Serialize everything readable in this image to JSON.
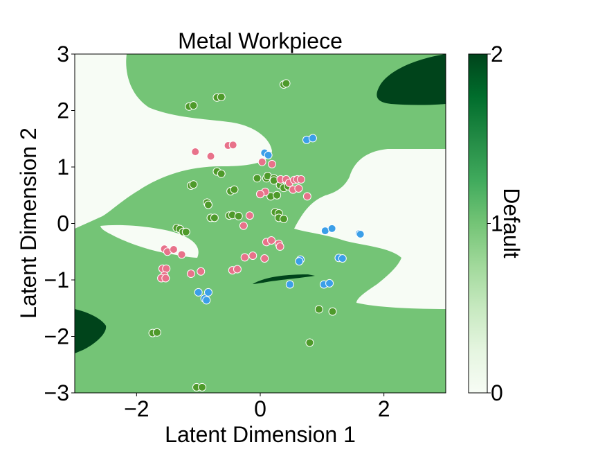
{
  "chart_data": {
    "type": "scatter",
    "title": "Metal Workpiece",
    "xlabel": "Latent Dimension 1",
    "ylabel": "Latent Dimension 2",
    "xlim": [
      -3,
      3
    ],
    "ylim": [
      -3,
      3
    ],
    "x_ticks": [
      -2,
      0,
      2
    ],
    "y_ticks": [
      -3,
      -2,
      -1,
      0,
      1,
      2,
      3
    ],
    "x_tick_labels": [
      "−2",
      "0",
      "2"
    ],
    "y_tick_labels": [
      "−3",
      "−2",
      "−1",
      "0",
      "1",
      "2",
      "3"
    ],
    "grid": false,
    "background": {
      "description": "decision-region contour map with three class levels",
      "class_colors": [
        "#f7fcf5",
        "#74c476",
        "#00441b"
      ]
    },
    "colorbar": {
      "label": "Default",
      "range": [
        0,
        2
      ],
      "ticks": [
        0,
        1,
        2
      ],
      "tick_labels": [
        "0",
        "1",
        "2"
      ],
      "cmap_stops": [
        "#f7fcf5",
        "#e5f5e0",
        "#c7e9c0",
        "#a1d99b",
        "#74c476",
        "#41ab5d",
        "#238b45",
        "#006d2c",
        "#00441b"
      ]
    },
    "series": [
      {
        "color": "#4e9a2a",
        "points": [
          [
            -1.15,
            2.07
          ],
          [
            -1.08,
            2.09
          ],
          [
            -0.7,
            2.23
          ],
          [
            -0.63,
            2.24
          ],
          [
            0.38,
            2.46
          ],
          [
            0.42,
            2.48
          ],
          [
            -1.12,
            0.67
          ],
          [
            -1.08,
            0.69
          ],
          [
            -0.7,
            0.92
          ],
          [
            -0.63,
            0.88
          ],
          [
            -0.48,
            0.57
          ],
          [
            -0.42,
            0.6
          ],
          [
            -0.86,
            0.37
          ],
          [
            -0.84,
            0.33
          ],
          [
            -0.8,
            0.1
          ],
          [
            -0.74,
            0.1
          ],
          [
            -0.5,
            0.14
          ],
          [
            -0.45,
            0.15
          ],
          [
            -0.35,
            0.13
          ],
          [
            -1.35,
            -0.08
          ],
          [
            -1.3,
            -0.1
          ],
          [
            -1.25,
            -0.15
          ],
          [
            -1.2,
            -0.15
          ],
          [
            -0.05,
            0.8
          ],
          [
            0.1,
            0.8
          ],
          [
            0.12,
            0.84
          ],
          [
            0.22,
            0.8
          ],
          [
            0.22,
            0.76
          ],
          [
            0.32,
            0.68
          ],
          [
            0.38,
            0.63
          ],
          [
            0.45,
            0.66
          ],
          [
            0.17,
            0.48
          ],
          [
            0.27,
            0.5
          ],
          [
            0.24,
            0.2
          ],
          [
            0.3,
            0.18
          ],
          [
            0.3,
            0.1
          ],
          [
            0.38,
            0.08
          ],
          [
            0.95,
            -1.52
          ],
          [
            1.17,
            -1.56
          ],
          [
            -1.74,
            -1.94
          ],
          [
            -1.67,
            -1.93
          ],
          [
            0.8,
            -2.11
          ],
          [
            -1.03,
            -2.9
          ],
          [
            -0.94,
            -2.9
          ]
        ]
      },
      {
        "color": "#e8728a",
        "points": [
          [
            -1.05,
            1.27
          ],
          [
            -0.8,
            1.19
          ],
          [
            -0.52,
            1.38
          ],
          [
            -0.44,
            1.39
          ],
          [
            0.03,
            1.09
          ],
          [
            0.19,
            1.05
          ],
          [
            0.0,
            0.52
          ],
          [
            0.08,
            0.56
          ],
          [
            0.0,
            0.52
          ],
          [
            0.33,
            0.78
          ],
          [
            0.42,
            0.78
          ],
          [
            0.47,
            0.72
          ],
          [
            0.55,
            0.77
          ],
          [
            0.6,
            0.78
          ],
          [
            0.53,
            0.6
          ],
          [
            0.62,
            0.62
          ],
          [
            0.66,
            0.78
          ],
          [
            0.76,
            0.48
          ],
          [
            -0.27,
            -0.04
          ],
          [
            -0.17,
            0.14
          ],
          [
            0.1,
            -0.33
          ],
          [
            0.18,
            -0.3
          ],
          [
            0.3,
            -0.36
          ],
          [
            0.32,
            -0.41
          ],
          [
            -0.25,
            -0.6
          ],
          [
            -0.12,
            -0.57
          ],
          [
            0.07,
            -0.62
          ],
          [
            -1.55,
            -0.45
          ],
          [
            -1.5,
            -0.5
          ],
          [
            -1.4,
            -0.46
          ],
          [
            -1.27,
            -0.55
          ],
          [
            -1.58,
            -0.8
          ],
          [
            -1.52,
            -0.8
          ],
          [
            -1.55,
            -0.92
          ],
          [
            -1.6,
            -0.97
          ],
          [
            -1.53,
            -0.97
          ],
          [
            -1.12,
            -0.89
          ],
          [
            -0.96,
            -0.85
          ],
          [
            -0.45,
            -0.83
          ],
          [
            -0.37,
            -0.81
          ]
        ]
      },
      {
        "color": "#3b9fe8",
        "points": [
          [
            0.07,
            1.25
          ],
          [
            0.13,
            1.21
          ],
          [
            0.75,
            1.48
          ],
          [
            0.85,
            1.51
          ],
          [
            1.05,
            -0.13
          ],
          [
            1.16,
            -0.09
          ],
          [
            1.6,
            -0.18
          ],
          [
            1.62,
            -0.19
          ],
          [
            1.27,
            -0.61
          ],
          [
            1.33,
            -0.62
          ],
          [
            0.65,
            -0.64
          ],
          [
            0.63,
            -0.67
          ],
          [
            0.48,
            -1.08
          ],
          [
            1.03,
            -1.08
          ],
          [
            1.12,
            -1.06
          ],
          [
            -1.0,
            -1.22
          ],
          [
            -0.9,
            -1.33
          ],
          [
            -0.87,
            -1.36
          ],
          [
            -0.84,
            -1.22
          ]
        ]
      }
    ]
  }
}
